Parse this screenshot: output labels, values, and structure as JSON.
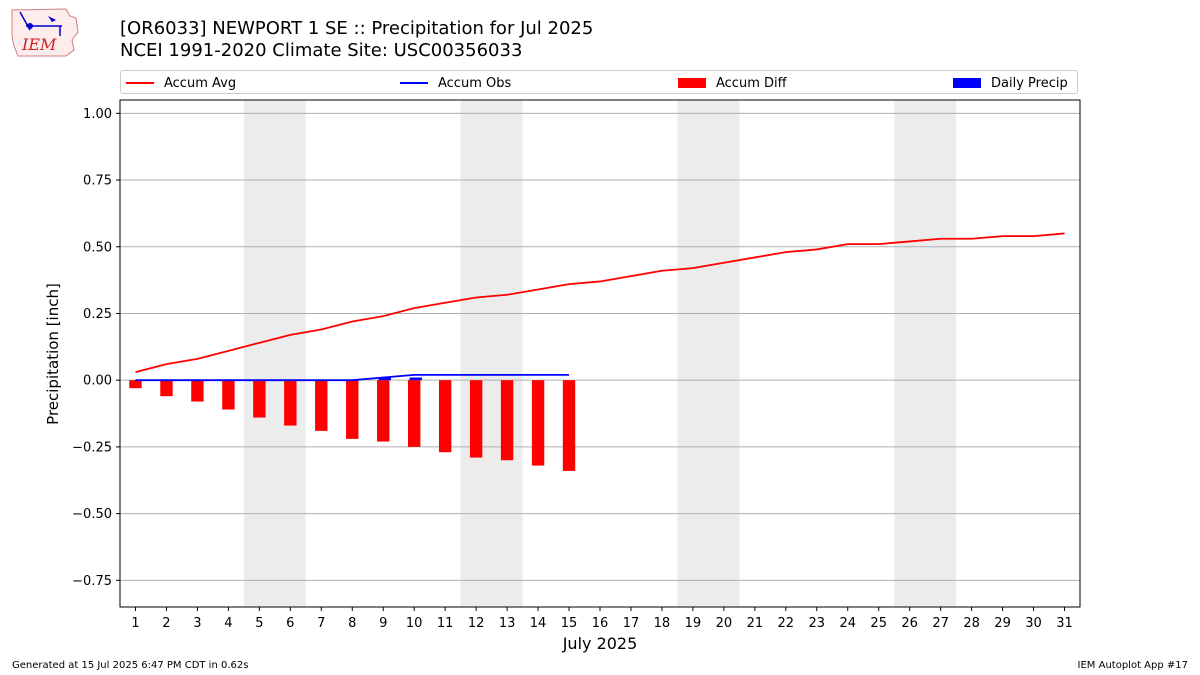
{
  "header": {
    "title_line1": "[OR6033] NEWPORT 1 SE :: Precipitation for Jul 2025",
    "title_line2": "NCEI 1991-2020 Climate Site: USC00356033",
    "logo_text": "IEM"
  },
  "footer": {
    "generated": "Generated at 15 Jul 2025 6:47 PM CDT in 0.62s",
    "app": "IEM Autoplot App #17"
  },
  "chart_data": {
    "type": "bar",
    "xlabel": "July 2025",
    "ylabel": "Precipitation [inch]",
    "ylim": [
      -0.85,
      1.05
    ],
    "yticks": [
      -0.75,
      -0.5,
      -0.25,
      0.0,
      0.25,
      0.5,
      0.75,
      1.0
    ],
    "ytick_labels": [
      "−0.75",
      "−0.50",
      "−0.25",
      "0.00",
      "0.25",
      "0.50",
      "0.75",
      "1.00"
    ],
    "xlim": [
      0.5,
      31.5
    ],
    "days": [
      1,
      2,
      3,
      4,
      5,
      6,
      7,
      8,
      9,
      10,
      11,
      12,
      13,
      14,
      15,
      16,
      17,
      18,
      19,
      20,
      21,
      22,
      23,
      24,
      25,
      26,
      27,
      28,
      29,
      30,
      31
    ],
    "grid": true,
    "weekend_shading": [
      [
        4.5,
        6.5
      ],
      [
        11.5,
        13.5
      ],
      [
        18.5,
        20.5
      ],
      [
        25.5,
        27.5
      ]
    ],
    "legend_position": "top, above plot",
    "series": [
      {
        "name": "Accum Avg",
        "kind": "line",
        "color": "#ff0000",
        "x": [
          1,
          2,
          3,
          4,
          5,
          6,
          7,
          8,
          9,
          10,
          11,
          12,
          13,
          14,
          15,
          16,
          17,
          18,
          19,
          20,
          21,
          22,
          23,
          24,
          25,
          26,
          27,
          28,
          29,
          30,
          31
        ],
        "values": [
          0.03,
          0.06,
          0.08,
          0.11,
          0.14,
          0.17,
          0.19,
          0.22,
          0.24,
          0.27,
          0.29,
          0.31,
          0.32,
          0.34,
          0.36,
          0.37,
          0.39,
          0.41,
          0.42,
          0.44,
          0.46,
          0.48,
          0.49,
          0.51,
          0.51,
          0.52,
          0.53,
          0.53,
          0.54,
          0.54,
          0.55
        ]
      },
      {
        "name": "Accum Obs",
        "kind": "line",
        "color": "#0000ff",
        "x": [
          1,
          2,
          3,
          4,
          5,
          6,
          7,
          8,
          9,
          10,
          11,
          12,
          13,
          14,
          15
        ],
        "values": [
          0,
          0,
          0,
          0,
          0,
          0,
          0,
          0,
          0.01,
          0.02,
          0.02,
          0.02,
          0.02,
          0.02,
          0.02
        ]
      },
      {
        "name": "Accum Diff",
        "kind": "bar",
        "color": "#ff0000",
        "x": [
          1,
          2,
          3,
          4,
          5,
          6,
          7,
          8,
          9,
          10,
          11,
          12,
          13,
          14,
          15
        ],
        "values": [
          -0.03,
          -0.06,
          -0.08,
          -0.11,
          -0.14,
          -0.17,
          -0.19,
          -0.22,
          -0.23,
          -0.25,
          -0.27,
          -0.29,
          -0.3,
          -0.32,
          -0.34
        ]
      },
      {
        "name": "Daily Precip",
        "kind": "bar",
        "color": "#0000ff",
        "x": [
          9,
          10
        ],
        "values": [
          0.01,
          0.01
        ]
      }
    ]
  }
}
